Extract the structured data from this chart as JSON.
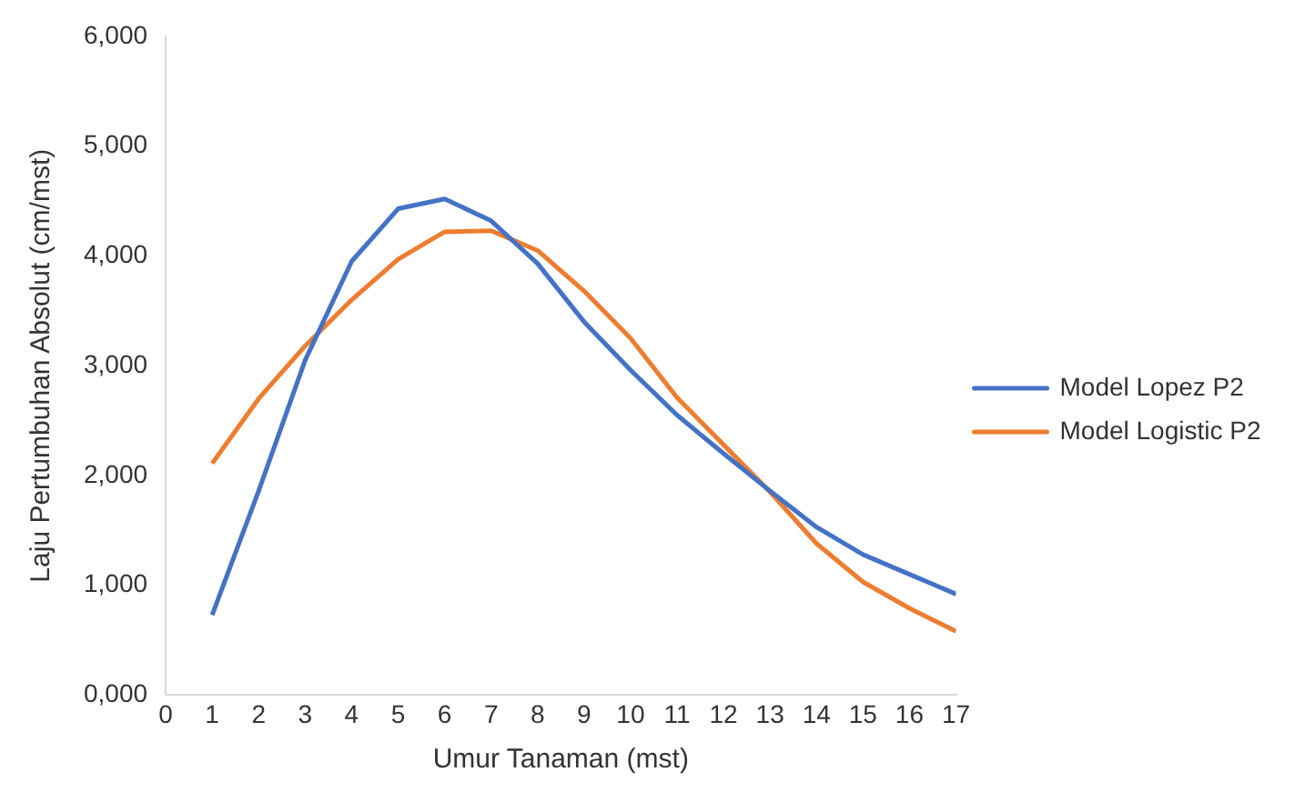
{
  "chart_data": {
    "type": "line",
    "xlabel": "Umur Tanaman (mst)",
    "ylabel": "Laju Pertumbuhan Absolut (cm/mst)",
    "x": [
      1,
      2,
      3,
      4,
      5,
      6,
      7,
      8,
      9,
      10,
      11,
      12,
      13,
      14,
      15,
      16,
      17
    ],
    "series": [
      {
        "name": "Model Lopez P2",
        "color": "#4472c4",
        "values": [
          730,
          1860,
          3050,
          3950,
          4430,
          4520,
          4320,
          3930,
          3400,
          2960,
          2550,
          2200,
          1860,
          1530,
          1280,
          1100,
          920
        ]
      },
      {
        "name": "Model Logistic P2",
        "color": "#ed7d31",
        "values": [
          2110,
          2700,
          3180,
          3600,
          3970,
          4220,
          4230,
          4050,
          3680,
          3250,
          2710,
          2280,
          1850,
          1380,
          1030,
          790,
          580
        ]
      }
    ],
    "xlim": [
      0,
      17
    ],
    "xticks": [
      0,
      1,
      2,
      3,
      4,
      5,
      6,
      7,
      8,
      9,
      10,
      11,
      12,
      13,
      14,
      15,
      16,
      17
    ],
    "ylim": [
      0,
      6000
    ],
    "yticks": [
      {
        "value": 0,
        "label": "0,000"
      },
      {
        "value": 1000,
        "label": "1,000"
      },
      {
        "value": 2000,
        "label": "2,000"
      },
      {
        "value": 3000,
        "label": "3,000"
      },
      {
        "value": 4000,
        "label": "4,000"
      },
      {
        "value": 5000,
        "label": "5,000"
      },
      {
        "value": 6000,
        "label": "6,000"
      }
    ],
    "grid": false,
    "legend": "right",
    "marker": "none",
    "line_style": "solid"
  }
}
